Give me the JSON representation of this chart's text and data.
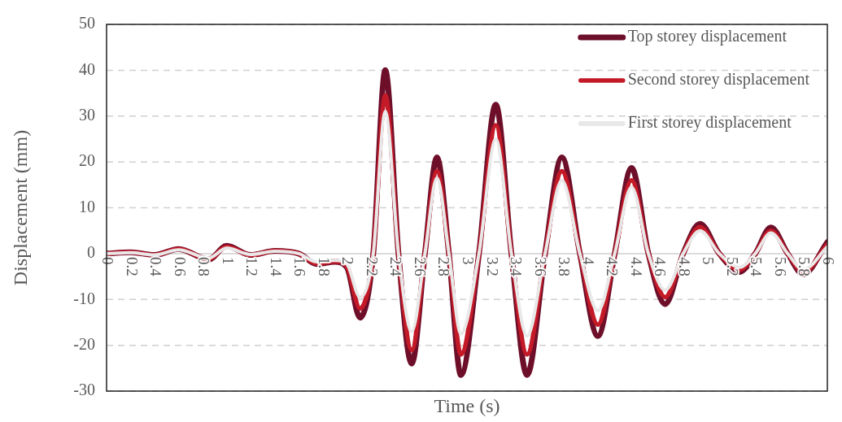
{
  "chart_data": {
    "type": "line",
    "xlabel": "Time (s)",
    "ylabel": "Displacement (mm)",
    "xlim": [
      0,
      6
    ],
    "xticks": [
      0,
      0.2,
      0.4,
      0.6,
      0.8,
      1,
      1.2,
      1.4,
      1.6,
      1.8,
      2,
      2.2,
      2.4,
      2.6,
      2.8,
      3,
      3.2,
      3.4,
      3.6,
      3.8,
      4,
      4.2,
      4.4,
      4.6,
      4.8,
      5,
      5.2,
      5.4,
      5.6,
      5.8,
      6
    ],
    "ylim": [
      -30,
      50
    ],
    "yticks": [
      -30,
      -20,
      -10,
      0,
      10,
      20,
      30,
      40,
      50
    ],
    "grid": "y",
    "legend": "top right",
    "marker": "none",
    "line_style": "solid",
    "series": [
      {
        "name": "Top storey displacement",
        "color": "#6e0f2a",
        "x": [
          0,
          0.2,
          0.4,
          0.6,
          0.85,
          1.0,
          1.2,
          1.4,
          1.6,
          1.75,
          1.9,
          2.0,
          2.11,
          2.22,
          2.32,
          2.43,
          2.54,
          2.65,
          2.75,
          2.85,
          2.95,
          3.1,
          3.24,
          3.37,
          3.5,
          3.65,
          3.79,
          3.94,
          4.09,
          4.23,
          4.37,
          4.51,
          4.65,
          4.8,
          4.94,
          5.1,
          5.27,
          5.4,
          5.53,
          5.67,
          5.8,
          6
        ],
        "values": [
          0,
          0.3,
          -0.3,
          1.0,
          -1.3,
          1.7,
          -0.3,
          0.6,
          0,
          -2.3,
          -1.8,
          -3,
          -14,
          0,
          40,
          0,
          -24,
          0,
          21,
          0,
          -26.5,
          0,
          32.5,
          0,
          -26.5,
          0,
          21,
          0,
          -18,
          0,
          18.7,
          0,
          -11,
          0,
          6.5,
          0,
          -4,
          0,
          5.7,
          0,
          -4.5,
          2.5
        ]
      },
      {
        "name": "Second storey displacement",
        "color": "#c41a28",
        "x": [
          0,
          0.2,
          0.4,
          0.6,
          0.85,
          1.0,
          1.2,
          1.4,
          1.6,
          1.75,
          1.9,
          2.0,
          2.11,
          2.22,
          2.32,
          2.43,
          2.54,
          2.65,
          2.75,
          2.85,
          2.95,
          3.1,
          3.24,
          3.37,
          3.5,
          3.65,
          3.79,
          3.94,
          4.09,
          4.23,
          4.37,
          4.51,
          4.65,
          4.8,
          4.94,
          5.1,
          5.27,
          5.4,
          5.53,
          5.67,
          5.8,
          6
        ],
        "values": [
          0,
          0.3,
          -0.3,
          1.0,
          -1.2,
          1.5,
          -0.3,
          0.6,
          0,
          -2.2,
          -1.7,
          -2.8,
          -12,
          0,
          34.5,
          0,
          -21,
          0,
          18,
          0,
          -22,
          0,
          28,
          0,
          -22,
          0,
          18,
          0,
          -15.5,
          0,
          16,
          0,
          -9.5,
          0,
          5.8,
          0,
          -3.5,
          0,
          5,
          0,
          -4,
          2
        ]
      },
      {
        "name": "First storey displacement",
        "color": "#e8e8e8",
        "x": [
          0,
          0.2,
          0.4,
          0.6,
          0.85,
          1.0,
          1.2,
          1.4,
          1.6,
          1.75,
          1.9,
          2.0,
          2.11,
          2.22,
          2.32,
          2.43,
          2.54,
          2.65,
          2.75,
          2.85,
          2.95,
          3.1,
          3.24,
          3.37,
          3.5,
          3.65,
          3.79,
          3.94,
          4.09,
          4.23,
          4.37,
          4.51,
          4.65,
          4.8,
          4.94,
          5.1,
          5.27,
          5.4,
          5.53,
          5.67,
          5.8,
          6
        ],
        "values": [
          0,
          0.2,
          -0.3,
          0.8,
          -1.0,
          1.2,
          -0.2,
          0.5,
          0,
          -1.8,
          -1.5,
          -2.3,
          -9.5,
          0,
          31,
          0,
          -17,
          0,
          16.5,
          0,
          -17.5,
          0,
          25,
          0,
          -18,
          0,
          16,
          0,
          -12.5,
          0,
          14.5,
          0,
          -8,
          0,
          5,
          0,
          -3,
          0,
          4.5,
          0,
          -3.5,
          1.5
        ]
      }
    ]
  }
}
